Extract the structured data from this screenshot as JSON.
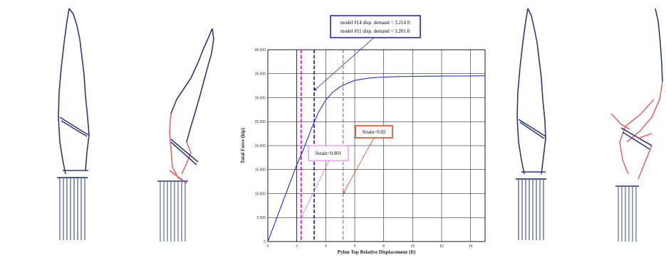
{
  "figure": {
    "models": [
      {
        "name": "model-1-undeformed",
        "color": "#2b3a7a"
      },
      {
        "name": "model-2-deformed",
        "color": "#e06a6a"
      },
      {
        "name": "model-3-undeformed",
        "color": "#2b3a7a"
      },
      {
        "name": "model-4-deformed",
        "color": "#e06a6a"
      }
    ]
  },
  "chart_data": {
    "type": "line",
    "title": "",
    "xlabel": "Pylon Top Relative Displacement (ft)",
    "ylabel": "Total Force (kip)",
    "xlim": [
      0,
      15
    ],
    "ylim": [
      0,
      40000
    ],
    "grid": true,
    "x_ticks": [
      0,
      2,
      4,
      6,
      8,
      10,
      12,
      14
    ],
    "y_ticks": [
      0,
      5000,
      10000,
      15000,
      20000,
      25000,
      30000,
      35000,
      40000
    ],
    "y_tick_labels": [
      "0",
      "5,000",
      "10,000",
      "15,000",
      "20,000",
      "25,000",
      "30,000",
      "35,000",
      "40,000"
    ],
    "series": [
      {
        "color": "#1f33d6",
        "x": [
          0,
          0.5,
          1.0,
          1.5,
          2.0,
          2.5,
          3.0,
          3.5,
          4.0,
          4.5,
          5.0,
          5.5,
          6.0,
          7.0,
          8.0,
          9.0,
          10.0,
          11.0,
          12.0,
          13.0,
          14.0,
          15.0
        ],
        "y": [
          0,
          4000,
          8000,
          12000,
          16000,
          19500,
          23500,
          27000,
          29500,
          31200,
          32300,
          33000,
          33600,
          34100,
          34300,
          34400,
          34450,
          34480,
          34500,
          34520,
          34540,
          34560
        ]
      }
    ],
    "vertical_lines": [
      {
        "x": 2.0,
        "color": "#000000",
        "style": "solid",
        "width": 0.8
      },
      {
        "x": 2.3,
        "color": "#d400d4",
        "style": "dashed",
        "width": 1.6
      },
      {
        "x": 3.2,
        "color": "#1010c0",
        "style": "dashed",
        "width": 1.6
      },
      {
        "x": 5.2,
        "color": "#d02020",
        "style": "dashed",
        "width": 0.9
      }
    ],
    "annotations": [
      {
        "label": "model #14 disp. demand = 3.214 ft",
        "line2": "model #11 disp. demand = 3.201 ft",
        "border": "#2a2ab0",
        "target_x": 3.2,
        "target_y": 31500
      },
      {
        "label": "Strain=0.02",
        "border": "#e04a20",
        "target_x": 5.2,
        "target_y": 10000
      },
      {
        "label": "Strain=0.001",
        "border": "#e070e0",
        "target_x": 2.3,
        "target_y": 5000
      }
    ]
  }
}
